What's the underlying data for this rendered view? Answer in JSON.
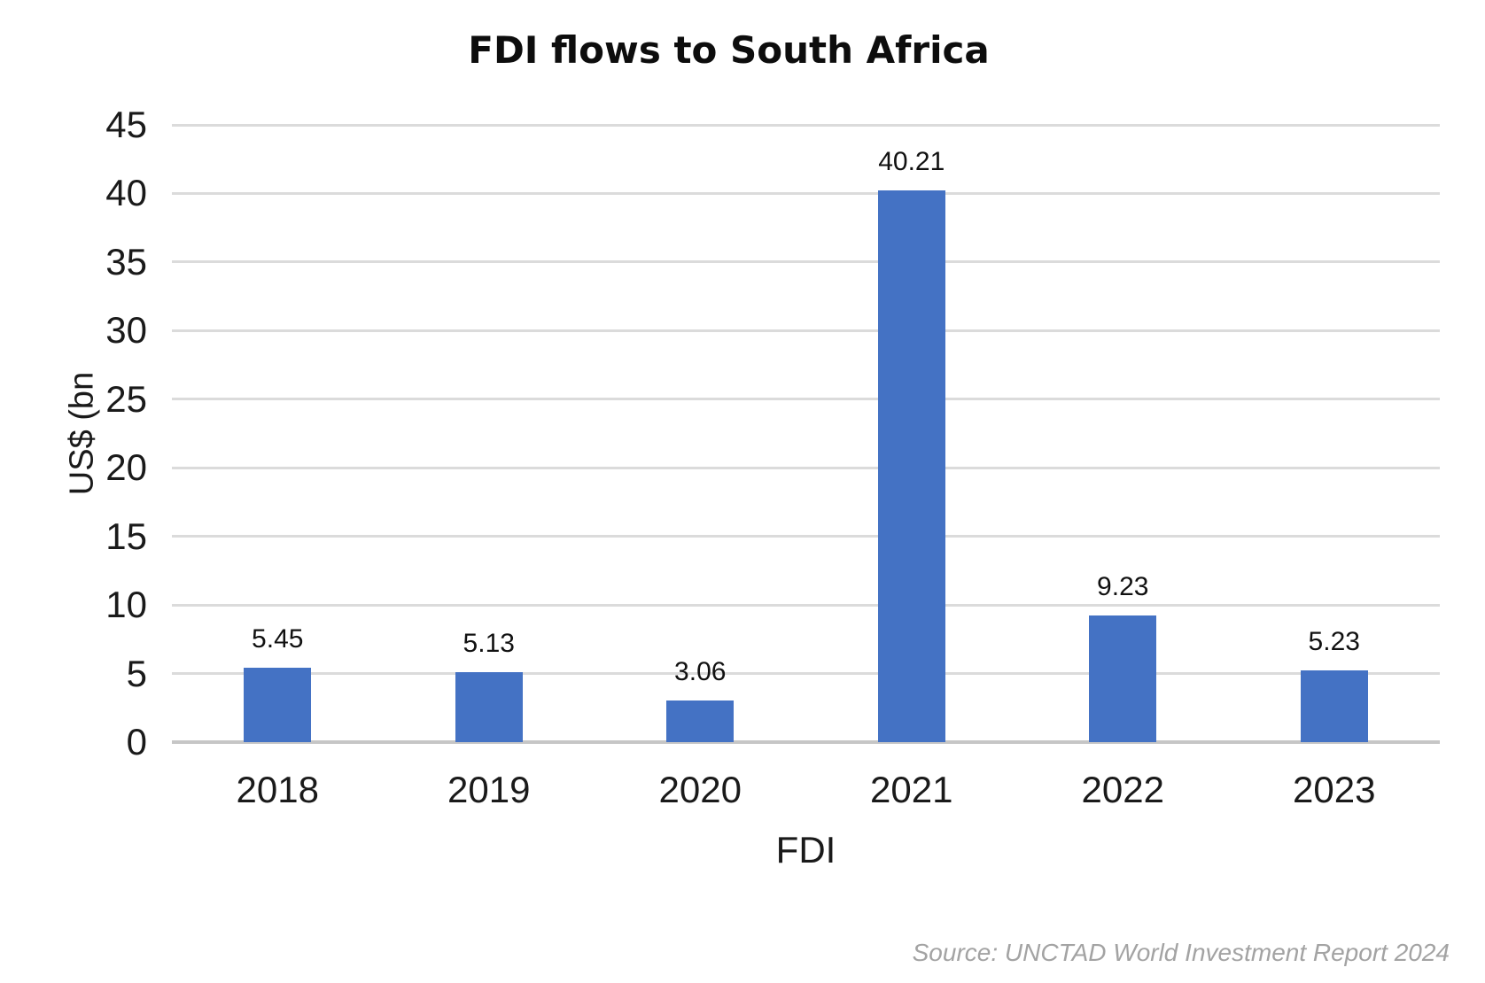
{
  "chart_data": {
    "type": "bar",
    "title": "FDI flows to South Africa",
    "categories": [
      "2018",
      "2019",
      "2020",
      "2021",
      "2022",
      "2023"
    ],
    "values": [
      5.45,
      5.13,
      3.06,
      40.21,
      9.23,
      5.23
    ],
    "value_labels": [
      "5.45",
      "5.13",
      "3.06",
      "40.21",
      "9.23",
      "5.23"
    ],
    "xlabel": "FDI",
    "ylabel": "US$ (bn",
    "ylim": [
      0,
      45
    ],
    "yticks": [
      45,
      40,
      35,
      30,
      25,
      20,
      15,
      10,
      5,
      0
    ],
    "grid": true,
    "legend": false,
    "colors": {
      "bar": "#4472C4",
      "gridline": "#DBDBDB",
      "axis_line": "#C6C6C6",
      "label_text": "#111111",
      "source_text": "#A3A3A3"
    }
  },
  "source_note": "Source: UNCTAD World Investment Report 2024"
}
